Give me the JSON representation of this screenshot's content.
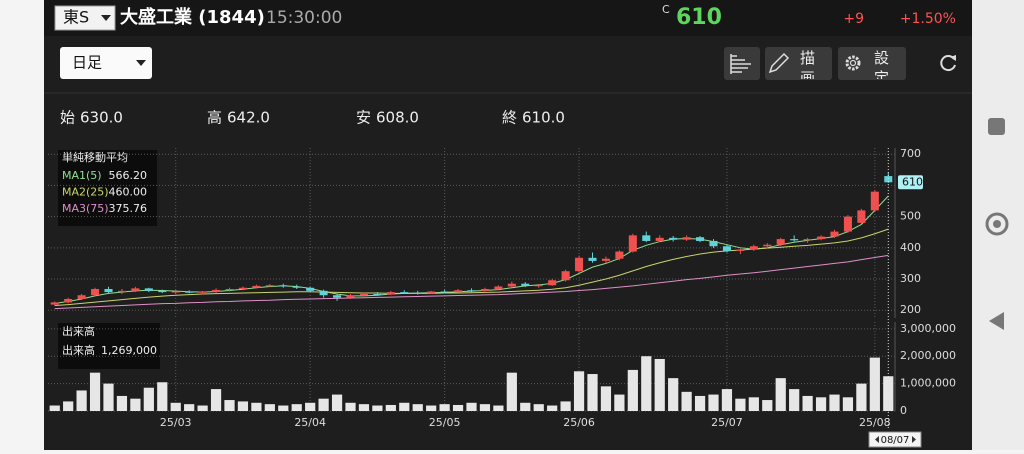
{
  "header": {
    "market": "東S",
    "name": "大盛工業 (1844)",
    "time": "15:30:00",
    "price_flag": "C",
    "price": "610",
    "change": "+9",
    "change_pct": "+1.50%"
  },
  "toolbar": {
    "period": "日足",
    "draw": "描画",
    "settings": "設定"
  },
  "ohlc": [
    {
      "label": "始",
      "value": "630.0"
    },
    {
      "label": "高",
      "value": "642.0"
    },
    {
      "label": "安",
      "value": "608.0"
    },
    {
      "label": "終",
      "value": "610.0"
    }
  ],
  "chart_data": [
    {
      "type": "candlestick",
      "title": "単純移動平均",
      "candles": [
        [
          218,
          228,
          215,
          225
        ],
        [
          225,
          240,
          222,
          236
        ],
        [
          236,
          252,
          233,
          248
        ],
        [
          248,
          272,
          245,
          268
        ],
        [
          268,
          275,
          255,
          258
        ],
        [
          258,
          268,
          252,
          262
        ],
        [
          262,
          275,
          258,
          270
        ],
        [
          270,
          272,
          258,
          262
        ],
        [
          262,
          266,
          255,
          258
        ],
        [
          258,
          265,
          252,
          260
        ],
        [
          260,
          264,
          254,
          256
        ],
        [
          256,
          262,
          250,
          259
        ],
        [
          259,
          270,
          255,
          265
        ],
        [
          265,
          272,
          260,
          268
        ],
        [
          268,
          276,
          264,
          272
        ],
        [
          272,
          282,
          270,
          278
        ],
        [
          278,
          284,
          274,
          280
        ],
        [
          280,
          285,
          272,
          276
        ],
        [
          276,
          282,
          268,
          272
        ],
        [
          272,
          275,
          258,
          262
        ],
        [
          262,
          266,
          240,
          248
        ],
        [
          248,
          252,
          230,
          240
        ],
        [
          240,
          252,
          236,
          248
        ],
        [
          248,
          256,
          244,
          252
        ],
        [
          252,
          258,
          246,
          250
        ],
        [
          250,
          262,
          248,
          258
        ],
        [
          258,
          264,
          252,
          256
        ],
        [
          256,
          262,
          250,
          254
        ],
        [
          254,
          262,
          252,
          260
        ],
        [
          260,
          266,
          254,
          258
        ],
        [
          258,
          268,
          256,
          264
        ],
        [
          264,
          270,
          258,
          262
        ],
        [
          262,
          272,
          260,
          268
        ],
        [
          268,
          280,
          264,
          276
        ],
        [
          276,
          292,
          272,
          285
        ],
        [
          285,
          290,
          274,
          278
        ],
        [
          278,
          284,
          272,
          280
        ],
        [
          280,
          300,
          278,
          296
        ],
        [
          296,
          330,
          292,
          325
        ],
        [
          325,
          375,
          320,
          368
        ],
        [
          368,
          385,
          352,
          358
        ],
        [
          358,
          372,
          350,
          365
        ],
        [
          365,
          392,
          360,
          388
        ],
        [
          388,
          445,
          385,
          440
        ],
        [
          440,
          452,
          418,
          422
        ],
        [
          422,
          440,
          418,
          432
        ],
        [
          432,
          438,
          420,
          426
        ],
        [
          426,
          440,
          422,
          434
        ],
        [
          434,
          438,
          418,
          422
        ],
        [
          422,
          428,
          400,
          405
        ],
        [
          405,
          410,
          385,
          390
        ],
        [
          390,
          398,
          380,
          394
        ],
        [
          394,
          410,
          390,
          405
        ],
        [
          405,
          415,
          398,
          410
        ],
        [
          410,
          432,
          406,
          428
        ],
        [
          428,
          440,
          420,
          424
        ],
        [
          424,
          432,
          416,
          428
        ],
        [
          428,
          440,
          424,
          436
        ],
        [
          436,
          458,
          432,
          452
        ],
        [
          452,
          505,
          448,
          500
        ],
        [
          480,
          525,
          476,
          520
        ],
        [
          520,
          585,
          515,
          580
        ],
        [
          630,
          642,
          608,
          610
        ]
      ],
      "up_color": "#f0504f",
      "down_color": "#5fd3d8",
      "series": [
        {
          "name": "MA1(5)",
          "color": "#8fe08f",
          "value_label": "566.20",
          "values": [
            222,
            228,
            236,
            246,
            254,
            258,
            262,
            264,
            263,
            261,
            259,
            258,
            260,
            263,
            267,
            272,
            276,
            278,
            276,
            270,
            260,
            252,
            246,
            246,
            248,
            252,
            254,
            255,
            256,
            257,
            259,
            261,
            263,
            266,
            272,
            278,
            281,
            286,
            298,
            318,
            338,
            350,
            366,
            392,
            408,
            420,
            428,
            430,
            428,
            420,
            410,
            400,
            396,
            400,
            410,
            418,
            424,
            430,
            436,
            452,
            475,
            520,
            566.2
          ]
        },
        {
          "name": "MA2(25)",
          "color": "#c9d46a",
          "value_label": "460.00",
          "values": [
            215,
            218,
            222,
            226,
            230,
            234,
            238,
            242,
            245,
            248,
            250,
            252,
            253,
            254,
            255,
            256,
            257,
            258,
            259,
            259,
            258,
            257,
            256,
            255,
            255,
            254,
            254,
            254,
            254,
            255,
            255,
            256,
            257,
            258,
            260,
            262,
            264,
            267,
            272,
            280,
            290,
            300,
            312,
            326,
            340,
            352,
            363,
            372,
            380,
            386,
            390,
            393,
            396,
            399,
            402,
            405,
            408,
            412,
            416,
            422,
            432,
            445,
            460
          ]
        },
        {
          "name": "MA3(75)",
          "color": "#e08fc8",
          "value_label": "375.76",
          "values": [
            205,
            207,
            209,
            211,
            213,
            215,
            217,
            219,
            221,
            222,
            224,
            225,
            227,
            228,
            230,
            231,
            232,
            234,
            235,
            236,
            237,
            238,
            239,
            240,
            241,
            242,
            243,
            244,
            245,
            246,
            247,
            248,
            249,
            250,
            252,
            254,
            256,
            258,
            260,
            263,
            266,
            270,
            274,
            278,
            283,
            288,
            293,
            298,
            302,
            307,
            312,
            316,
            320,
            325,
            330,
            335,
            340,
            345,
            350,
            355,
            362,
            369,
            375.76
          ]
        }
      ],
      "ylim": [
        175,
        720
      ],
      "yticks": [
        200,
        300,
        400,
        500,
        600,
        700
      ],
      "grid": true
    },
    {
      "type": "bar",
      "title": "出来高",
      "legend_name": "出来高",
      "legend_value": "1,269,000",
      "color": "#e6e6e6",
      "cursor": "08/07",
      "categories": [
        null,
        null,
        null,
        null,
        null,
        null,
        null,
        null,
        null,
        "25/03",
        null,
        null,
        null,
        null,
        null,
        null,
        null,
        null,
        null,
        "25/04",
        null,
        null,
        null,
        null,
        null,
        null,
        null,
        null,
        null,
        "25/05",
        null,
        null,
        null,
        null,
        null,
        null,
        null,
        null,
        null,
        "25/06",
        null,
        null,
        null,
        null,
        null,
        null,
        null,
        null,
        null,
        null,
        "25/07",
        null,
        null,
        null,
        null,
        null,
        null,
        null,
        null,
        null,
        null,
        "25/08",
        null
      ],
      "values": [
        200000,
        350000,
        750000,
        1400000,
        1000000,
        550000,
        450000,
        850000,
        1050000,
        300000,
        250000,
        200000,
        800000,
        400000,
        350000,
        300000,
        250000,
        200000,
        250000,
        300000,
        450000,
        600000,
        300000,
        250000,
        200000,
        220000,
        300000,
        250000,
        200000,
        250000,
        220000,
        300000,
        250000,
        200000,
        1400000,
        300000,
        250000,
        200000,
        350000,
        1450000,
        1350000,
        900000,
        600000,
        1500000,
        2000000,
        1900000,
        1200000,
        700000,
        550000,
        600000,
        800000,
        450000,
        500000,
        400000,
        1200000,
        800000,
        550000,
        500000,
        600000,
        500000,
        1000000,
        1950000,
        1269000
      ],
      "ylim": [
        0,
        3250000
      ],
      "yticks": [
        0,
        {
          "value": 1000000,
          "label": "1,000,000"
        },
        {
          "value": 2000000,
          "label": "2,000,000"
        },
        {
          "value": 3000000,
          "label": "3,000,000"
        }
      ],
      "grid": true
    }
  ]
}
